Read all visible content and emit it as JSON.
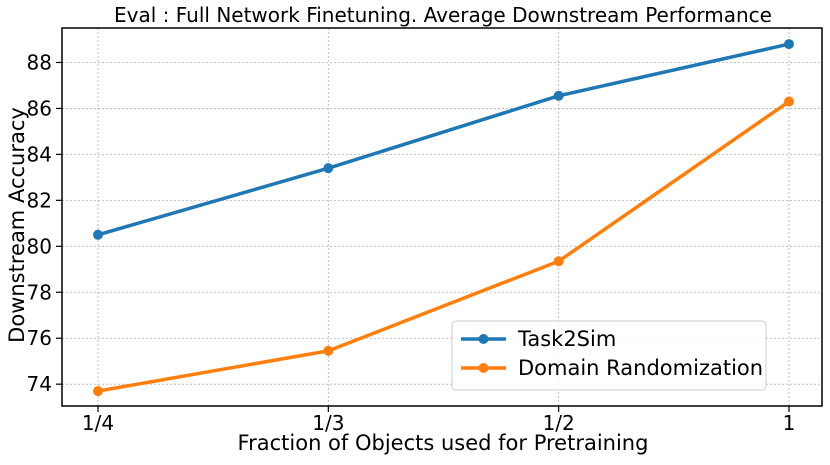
{
  "chart_data": {
    "type": "line",
    "title": "Eval : Full Network Finetuning. Average Downstream Performance",
    "xlabel": "Fraction of Objects used for Pretraining",
    "ylabel": "Downstream Accuracy",
    "categories": [
      "1/4",
      "1/3",
      "1/2",
      "1"
    ],
    "series": [
      {
        "name": "Task2Sim",
        "color": "#1f77b4",
        "values": [
          80.5,
          83.4,
          86.55,
          88.8
        ]
      },
      {
        "name": "Domain Randomization",
        "color": "#ff7f0e",
        "values": [
          73.7,
          75.45,
          79.35,
          86.3
        ]
      }
    ],
    "ylim": [
      73.05,
      89.5
    ],
    "yticks": [
      74,
      76,
      78,
      80,
      82,
      84,
      86,
      88
    ],
    "grid": true,
    "legend_position": "lower-right"
  }
}
